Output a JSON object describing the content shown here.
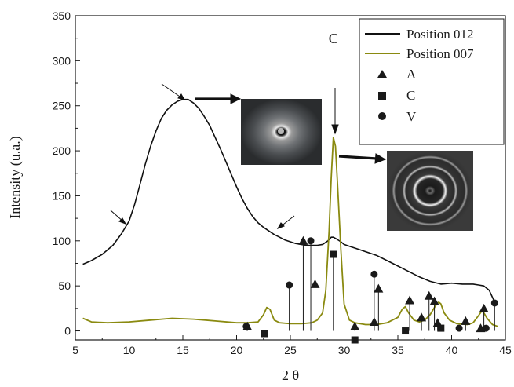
{
  "chart_data": {
    "type": "line",
    "title": "",
    "xlabel": "2 θ",
    "ylabel": "Intensity  (u.a.)",
    "xlim": [
      5,
      45
    ],
    "ylim": [
      -10,
      350
    ],
    "xticks": [
      5,
      10,
      15,
      20,
      25,
      30,
      35,
      40,
      45
    ],
    "yticks": [
      0,
      50,
      100,
      150,
      200,
      250,
      300,
      350
    ],
    "grid": false,
    "legend_placement": "top-right",
    "colors": {
      "pos012": "#111111",
      "pos007": "#8a8a10",
      "markers": "#1a1a1a"
    },
    "series": [
      {
        "name": "Position 012",
        "x": [
          5.7,
          6.5,
          7.5,
          8.5,
          9.3,
          10,
          10.5,
          11,
          11.5,
          12,
          12.5,
          13,
          13.5,
          14,
          14.5,
          15,
          15.5,
          16,
          16.5,
          17,
          17.5,
          18,
          18.5,
          19,
          19.5,
          20,
          20.5,
          21,
          21.5,
          22,
          22.5,
          23,
          23.5,
          24,
          24.5,
          25,
          25.5,
          26,
          26.5,
          27,
          27.5,
          28,
          28.5,
          28.8,
          29,
          29.3,
          29.7,
          30,
          30.5,
          31,
          32,
          33,
          34,
          35,
          36,
          37,
          38,
          39,
          40,
          41,
          42,
          42.5,
          43,
          43.5,
          44
        ],
        "y": [
          74,
          78,
          85,
          95,
          108,
          122,
          140,
          162,
          185,
          205,
          222,
          236,
          245,
          251,
          255,
          257,
          257,
          253,
          247,
          238,
          228,
          215,
          202,
          188,
          174,
          160,
          147,
          136,
          127,
          120,
          115,
          111,
          107,
          104,
          101,
          99,
          97,
          96,
          95,
          95,
          95,
          96,
          100,
          104,
          104,
          102,
          99,
          96,
          94,
          92,
          88,
          84,
          78,
          72,
          66,
          60,
          55,
          52,
          53,
          52,
          52,
          51,
          50,
          45,
          32
        ]
      },
      {
        "name": "Position 007",
        "x": [
          5.7,
          6.5,
          8,
          10,
          12,
          14,
          16,
          18,
          20,
          21,
          22,
          22.5,
          22.8,
          23.1,
          23.5,
          24,
          25,
          26,
          27,
          27.5,
          28,
          28.3,
          28.6,
          28.8,
          29,
          29.2,
          29.4,
          29.7,
          30,
          30.5,
          31,
          32,
          33,
          34,
          35,
          35.4,
          35.7,
          36,
          36.5,
          37,
          37.5,
          38,
          38.5,
          38.8,
          39,
          39.3,
          39.8,
          40.5,
          41.5,
          42,
          42.5,
          42.8,
          43,
          43.3,
          43.8,
          44.3
        ],
        "y": [
          14,
          10,
          9,
          10,
          12,
          14,
          13,
          11,
          9,
          9,
          10,
          18,
          26,
          24,
          12,
          9,
          8,
          8,
          9,
          12,
          20,
          45,
          110,
          170,
          215,
          205,
          160,
          90,
          30,
          12,
          9,
          7,
          7,
          9,
          15,
          24,
          27,
          20,
          12,
          10,
          12,
          18,
          28,
          32,
          30,
          20,
          12,
          8,
          7,
          9,
          17,
          22,
          20,
          14,
          7,
          5
        ]
      }
    ],
    "markers": {
      "A": {
        "legend": "A",
        "shape": "triangle",
        "x": [
          21.0,
          26.2,
          27.3,
          31.0,
          32.8,
          33.2,
          36.1,
          37.2,
          37.9,
          38.4,
          38.7,
          41.3,
          42.7,
          43.0
        ],
        "y": [
          5,
          100,
          52,
          5,
          10,
          47,
          34,
          15,
          39,
          33,
          9,
          11,
          3,
          25
        ]
      },
      "C": {
        "legend": "C",
        "shape": "square",
        "x": [
          22.6,
          29.0,
          31.0,
          35.7,
          39.0
        ],
        "y": [
          -3,
          85,
          -10,
          0,
          3
        ]
      },
      "V": {
        "legend": "V",
        "shape": "circle",
        "x": [
          20.9,
          24.9,
          26.9,
          32.8,
          40.7,
          43.2,
          44.0
        ],
        "y": [
          5,
          51,
          100,
          63,
          3,
          3,
          31
        ]
      }
    },
    "annotations": [
      {
        "text": "C",
        "x": 29,
        "y": 222
      }
    ]
  }
}
